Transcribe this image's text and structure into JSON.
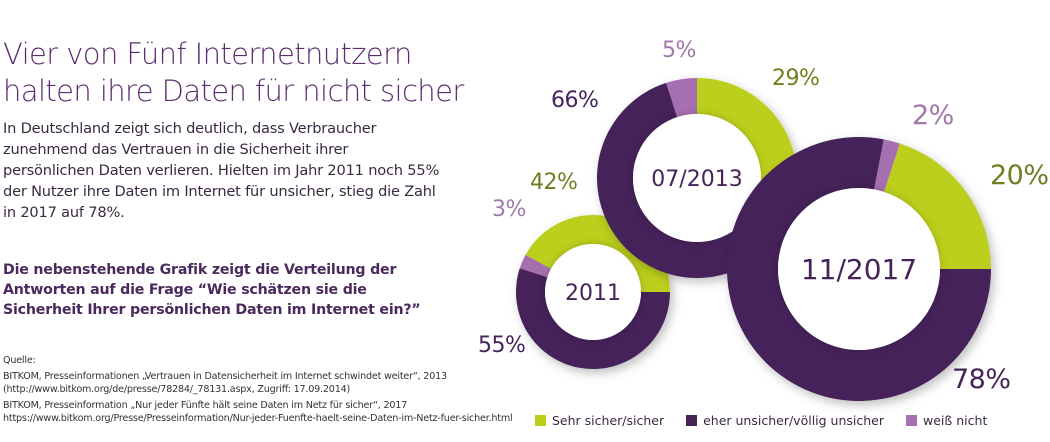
{
  "title": "Vier von Fünf Internetnutzern halten ihre Daten für nicht sicher",
  "intro": "In Deutschland zeigt sich deutlich, dass Verbraucher zunehmend das Vertrauen in die Sicherheit ihrer persönlichen Daten verlieren. Hielten im Jahr 2011 noch 55% der Nutzer ihre Daten im Internet für unsicher, stieg die Zahl in 2017 auf 78%.",
  "question": "Die nebenstehende Grafik zeigt die Verteilung der Antworten auf die Frage “Wie schätzen sie die Sicherheit Ihrer persönlichen Daten im Internet ein?”",
  "sources": {
    "heading": "Quelle:",
    "items": [
      "BITKOM, Presseinformationen „Vertrauen in Datensicherheit im Internet schwindet weiter“, 2013 (http://www.bitkom.org/de/presse/78284/_78131.aspx, Zugriff: 17.09.2014)",
      "BITKOM, Presseinformation „Nur jeder Fünfte hält seine Daten im Netz für sicher“, 2017 https://www.bitkom.org/Presse/Presseinformation/Nur-jeder-Fuenfte-haelt-seine-Daten-im-Netz-fuer-sicher.html"
    ]
  },
  "colors": {
    "secure": "#bccf1c",
    "insecure": "#45245a",
    "unknown": "#a670b0",
    "secure_text": "#6e7f1f",
    "unknown_text": "#a079aa",
    "insecure_text": "#45245a"
  },
  "chart_data": {
    "type": "pie",
    "variant": "donut",
    "categories": [
      "Sehr sicher/sicher",
      "eher unsicher/völlig unsicher",
      "weiß nicht"
    ],
    "series": [
      {
        "name": "2011",
        "values": [
          42,
          55,
          3
        ],
        "labels": [
          "42%",
          "55%",
          "3%"
        ]
      },
      {
        "name": "07/2013",
        "values": [
          29,
          66,
          5
        ],
        "labels": [
          "29%",
          "66%",
          "5%"
        ]
      },
      {
        "name": "11/2017",
        "values": [
          20,
          78,
          2
        ],
        "labels": [
          "20%",
          "78%",
          "2%"
        ]
      }
    ],
    "legend_position": "bottom"
  }
}
